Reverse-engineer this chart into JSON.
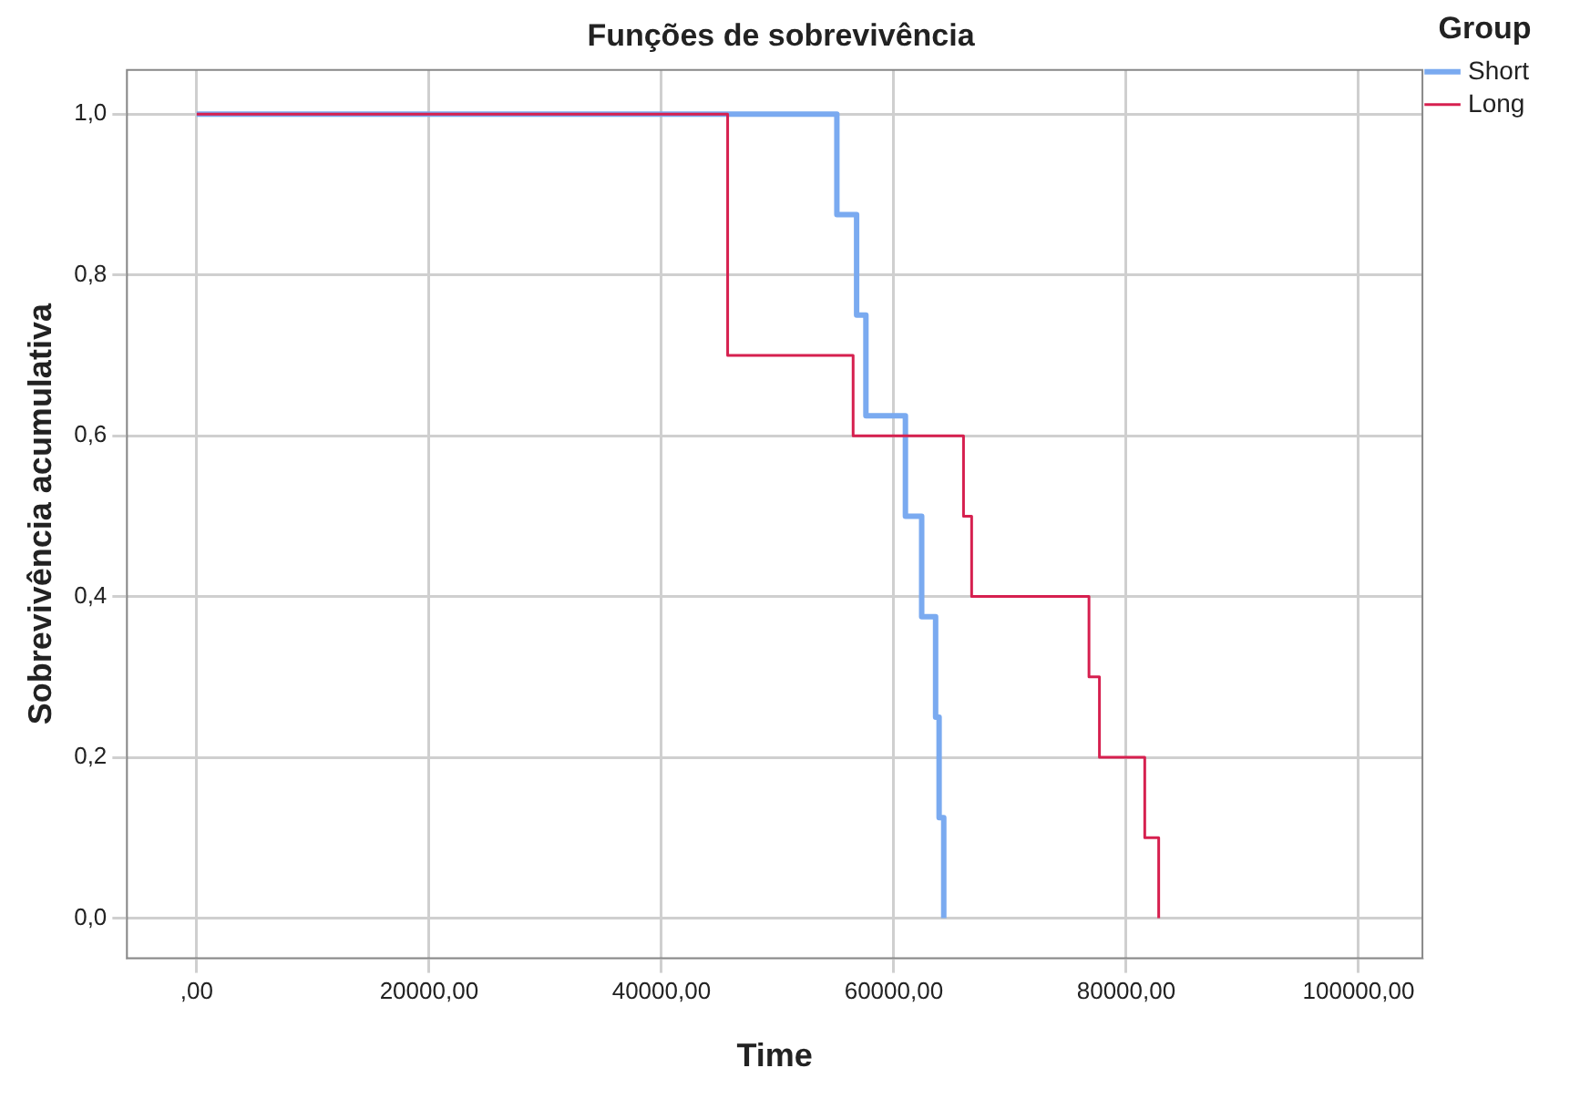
{
  "chart_data": {
    "type": "step",
    "title": "Funções de sobrevivência",
    "xlabel": "Time",
    "ylabel": "Sobrevivência acumulativa",
    "legend_title": "Group",
    "legend": "top right",
    "grid": true,
    "marker": "none",
    "line_style": "solid",
    "xlim": [
      -6000,
      105500
    ],
    "xticks": [
      {
        "value": 0,
        "label": ",00"
      },
      {
        "value": 20000,
        "label": "20000,00"
      },
      {
        "value": 40000,
        "label": "40000,00"
      },
      {
        "value": 60000,
        "label": "60000,00"
      },
      {
        "value": 80000,
        "label": "80000,00"
      },
      {
        "value": 100000,
        "label": "100000,00"
      }
    ],
    "ylim": [
      -0.05,
      1.055
    ],
    "yticks": [
      {
        "value": 0,
        "label": "0,0"
      },
      {
        "value": 0.2,
        "label": "0,2"
      },
      {
        "value": 0.4,
        "label": "0,4"
      },
      {
        "value": 0.6,
        "label": "0,6"
      },
      {
        "value": 0.8,
        "label": "0,8"
      },
      {
        "value": 1,
        "label": "1,0"
      }
    ],
    "series": [
      {
        "name": "Short",
        "color": "#7aaaf0",
        "x": [
          0,
          55100,
          56800,
          57600,
          61000,
          62400,
          63600,
          63900,
          64300
        ],
        "values": [
          1,
          0.875,
          0.75,
          0.625,
          0.5,
          0.375,
          0.25,
          0.125,
          0
        ]
      },
      {
        "name": "Long",
        "color": "#d6204f",
        "x": [
          0,
          45700,
          45700,
          56500,
          66000,
          66700,
          76800,
          77700,
          81600,
          82800
        ],
        "values": [
          1,
          0.9,
          0.7,
          0.6,
          0.5,
          0.4,
          0.3,
          0.2,
          0.1,
          0
        ]
      }
    ]
  }
}
